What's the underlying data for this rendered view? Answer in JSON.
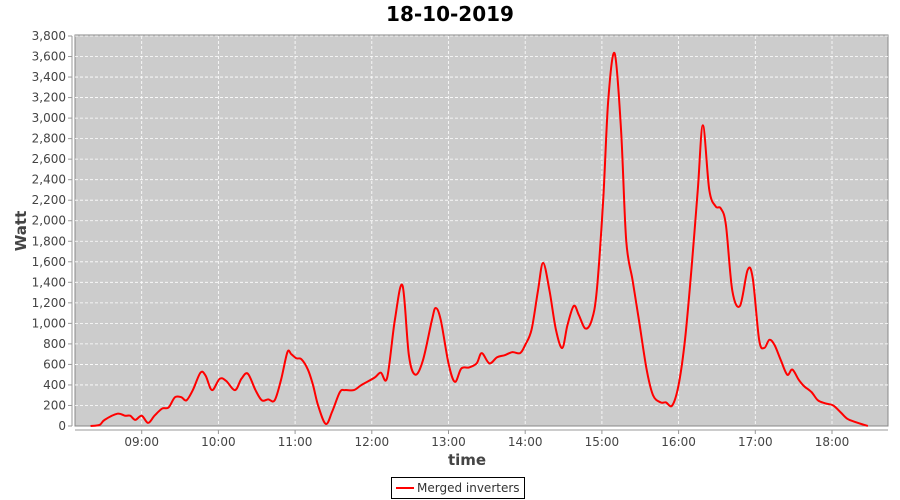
{
  "chart_data": {
    "type": "line",
    "title": "18-10-2019",
    "xlabel": "time",
    "ylabel": "Watt",
    "ylim": [
      0,
      3800
    ],
    "yticks": [
      "0",
      "200",
      "400",
      "600",
      "800",
      "1,000",
      "1,200",
      "1,400",
      "1,600",
      "1,800",
      "2,000",
      "2,200",
      "2,400",
      "2,600",
      "2,800",
      "3,000",
      "3,200",
      "3,400",
      "3,600",
      "3,800"
    ],
    "xticks": [
      "09:00",
      "10:00",
      "11:00",
      "12:00",
      "13:00",
      "14:00",
      "15:00",
      "16:00",
      "17:00",
      "18:00"
    ],
    "grid": true,
    "legend_position": "bottom",
    "series": [
      {
        "name": "Merged inverters",
        "color": "#ff0000",
        "x": [
          "08:20",
          "08:27",
          "08:31",
          "08:41",
          "08:47",
          "08:51",
          "08:55",
          "09:00",
          "09:05",
          "09:10",
          "09:16",
          "09:21",
          "09:26",
          "09:31",
          "09:35",
          "09:40",
          "09:46",
          "09:50",
          "09:55",
          "10:01",
          "10:06",
          "10:13",
          "10:18",
          "10:23",
          "10:29",
          "10:34",
          "10:39",
          "10:44",
          "10:49",
          "10:54",
          "10:57",
          "11:01",
          "11:05",
          "11:10",
          "11:14",
          "11:18",
          "11:24",
          "11:29",
          "11:35",
          "11:39",
          "11:46",
          "11:52",
          "12:02",
          "12:07",
          "12:12",
          "12:18",
          "12:24",
          "12:29",
          "12:34",
          "12:40",
          "12:47",
          "12:50",
          "12:54",
          "13:00",
          "13:05",
          "13:10",
          "13:16",
          "13:22",
          "13:26",
          "13:32",
          "13:38",
          "13:44",
          "13:50",
          "13:56",
          "14:00",
          "14:05",
          "14:10",
          "14:14",
          "14:19",
          "14:24",
          "14:29",
          "14:33",
          "14:38",
          "14:42",
          "14:47",
          "14:52",
          "14:56",
          "15:01",
          "15:05",
          "15:10",
          "15:15",
          "15:19",
          "15:24",
          "15:29",
          "15:35",
          "15:40",
          "15:46",
          "15:50",
          "15:55",
          "16:00",
          "16:05",
          "16:10",
          "16:15",
          "16:19",
          "16:24",
          "16:29",
          "16:33",
          "16:37",
          "16:42",
          "16:48",
          "16:54",
          "16:58",
          "17:03",
          "17:07",
          "17:11",
          "17:15",
          "17:20",
          "17:25",
          "17:29",
          "17:34",
          "17:38",
          "17:44",
          "17:49",
          "17:55",
          "18:01",
          "18:07",
          "18:12",
          "18:18",
          "18:28"
        ],
        "values": [
          0,
          10,
          60,
          120,
          100,
          100,
          60,
          100,
          30,
          100,
          170,
          180,
          280,
          280,
          250,
          350,
          520,
          490,
          350,
          460,
          440,
          350,
          460,
          510,
          350,
          250,
          260,
          250,
          450,
          720,
          700,
          660,
          650,
          550,
          400,
          200,
          20,
          140,
          330,
          350,
          350,
          400,
          470,
          520,
          470,
          1030,
          1370,
          690,
          500,
          640,
          1030,
          1150,
          1030,
          610,
          430,
          560,
          570,
          610,
          710,
          610,
          670,
          690,
          720,
          710,
          790,
          940,
          1320,
          1590,
          1320,
          940,
          760,
          980,
          1170,
          1080,
          950,
          1030,
          1320,
          2200,
          3180,
          3630,
          2880,
          1810,
          1420,
          1030,
          550,
          300,
          230,
          230,
          200,
          400,
          840,
          1520,
          2300,
          2930,
          2300,
          2140,
          2120,
          1960,
          1320,
          1170,
          1520,
          1440,
          840,
          760,
          840,
          790,
          640,
          500,
          550,
          450,
          390,
          330,
          250,
          220,
          200,
          130,
          70,
          40,
          0
        ]
      }
    ]
  }
}
